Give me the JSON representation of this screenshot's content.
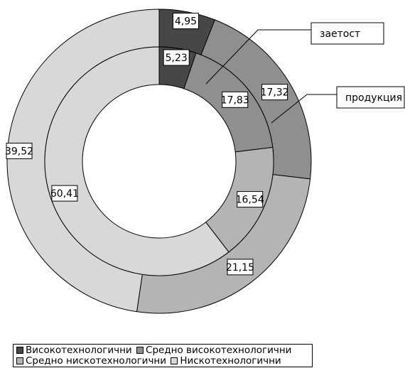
{
  "chart_data": {
    "type": "doughnut",
    "series": [
      {
        "name": "заетост",
        "ring": "inner",
        "values": [
          5.23,
          17.83,
          16.54,
          60.41
        ]
      },
      {
        "name": "продукция",
        "ring": "outer",
        "values": [
          4.95,
          17.32,
          21.15,
          39.52
        ]
      }
    ],
    "categories": [
      "Високотехнологични",
      "Средно високотехнологични",
      "Средно нискотехнологични",
      "Нискотехнологични"
    ],
    "colors": [
      "#474747",
      "#8f8f8f",
      "#b4b4b4",
      "#d8d8d8"
    ],
    "data_labels": {
      "inner": [
        "5,23",
        "17,83",
        "16,54",
        "60,41"
      ],
      "outer": [
        "4,95",
        "17,32",
        "21,15",
        "39,52"
      ]
    },
    "legend_position": "bottom-left"
  }
}
